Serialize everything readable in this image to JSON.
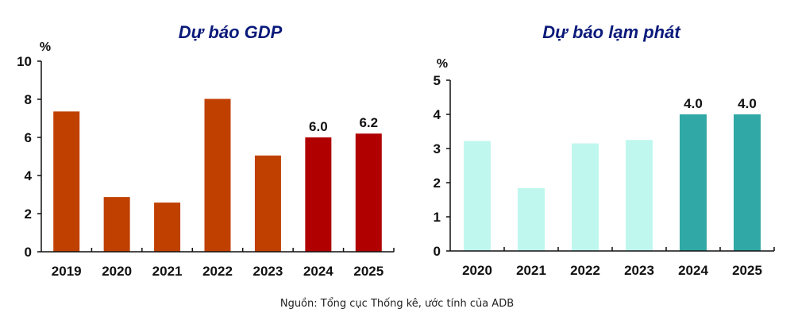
{
  "chart_data": [
    {
      "type": "bar",
      "title": "Dự báo GDP",
      "ylabel": "%",
      "xlabel": "",
      "categories": [
        "2019",
        "2020",
        "2021",
        "2022",
        "2023",
        "2024",
        "2025"
      ],
      "values": [
        7.36,
        2.87,
        2.58,
        8.02,
        5.05,
        6.0,
        6.2
      ],
      "data_labels": [
        "",
        "",
        "",
        "",
        "",
        "6.0",
        "6.2"
      ],
      "ylim": [
        0,
        10
      ],
      "yticks": [
        0,
        2,
        4,
        6,
        8,
        10
      ],
      "grid": false,
      "colors": {
        "actual": "#c04000",
        "forecast": "#b00000"
      },
      "forecast_from_index": 5
    },
    {
      "type": "bar",
      "title": "Dự báo lạm phát",
      "ylabel": "%",
      "xlabel": "",
      "categories": [
        "2020",
        "2021",
        "2022",
        "2023",
        "2024",
        "2025"
      ],
      "values": [
        3.22,
        1.84,
        3.15,
        3.25,
        4.0,
        4.0
      ],
      "data_labels": [
        "",
        "",
        "",
        "",
        "4.0",
        "4.0"
      ],
      "ylim": [
        0,
        5
      ],
      "yticks": [
        0,
        1,
        2,
        3,
        4,
        5
      ],
      "grid": false,
      "colors": {
        "actual": "#bff7ef",
        "forecast": "#30a8a5"
      },
      "forecast_from_index": 4
    }
  ],
  "source_note": "Nguồn: Tổng cục Thống kê, ước tính của ADB"
}
